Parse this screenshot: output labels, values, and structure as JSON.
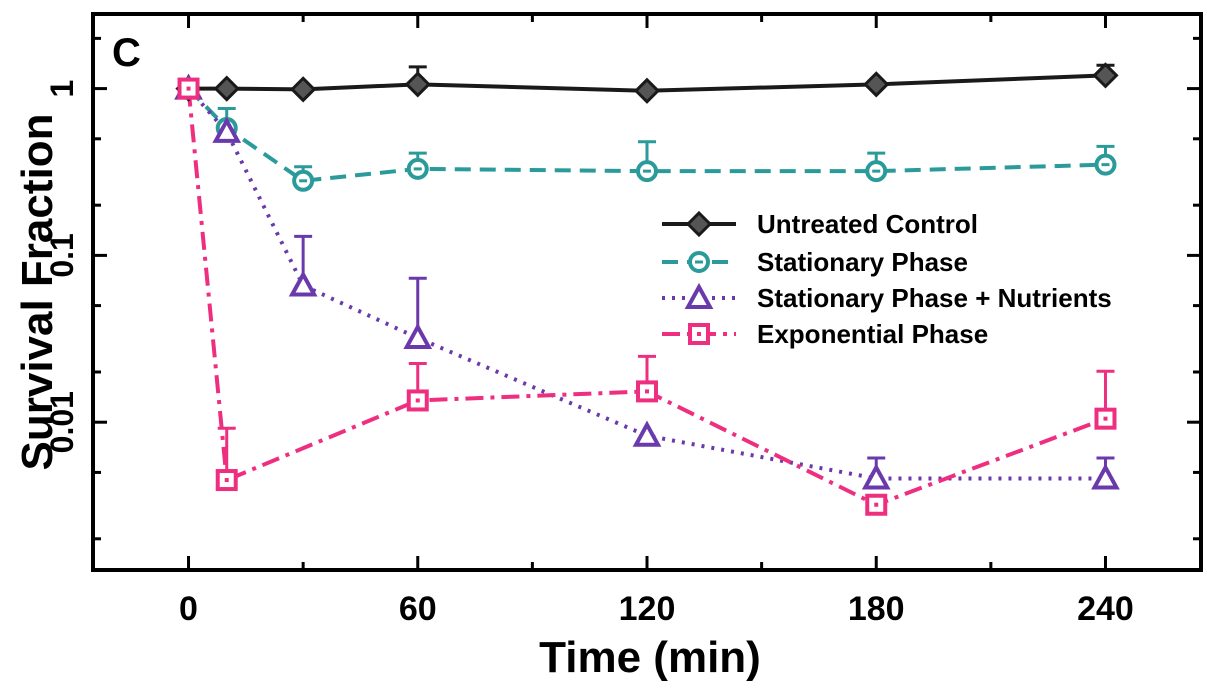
{
  "panel_label": "C",
  "chart_data": {
    "type": "line",
    "xlabel": "Time (min)",
    "ylabel": "Survival Fraction",
    "x_ticks": [
      0,
      60,
      120,
      180,
      240
    ],
    "y_ticks": [
      {
        "value": 1,
        "label": "1"
      },
      {
        "value": 0.1,
        "label": "0.1"
      },
      {
        "value": 0.01,
        "label": "0.01"
      }
    ],
    "xlim": [
      -25,
      265
    ],
    "ylim": [
      0.0013,
      2.8
    ],
    "y_scale": "log",
    "grid": false,
    "legend_position": "center-right",
    "series": [
      {
        "name": "Untreated Control",
        "color": "#1a1a1a",
        "line_style": "solid",
        "marker": "diamond",
        "x": [
          0,
          10,
          30,
          60,
          120,
          180,
          240
        ],
        "y": [
          1.0,
          1.0,
          0.99,
          1.06,
          0.97,
          1.06,
          1.2
        ],
        "err_upper": [
          null,
          null,
          null,
          1.35,
          null,
          null,
          1.38
        ]
      },
      {
        "name": "Stationary Phase",
        "color": "#2a9a9a",
        "line_style": "dashed",
        "marker": "circle",
        "x": [
          0,
          10,
          30,
          60,
          120,
          180,
          240
        ],
        "y": [
          1.0,
          0.58,
          0.28,
          0.33,
          0.32,
          0.32,
          0.35
        ],
        "err_upper": [
          null,
          0.76,
          0.34,
          0.41,
          0.48,
          0.41,
          0.45
        ]
      },
      {
        "name": "Stationary Phase + Nutrients",
        "color": "#6a3aac",
        "line_style": "dotted",
        "marker": "triangle",
        "x": [
          0,
          10,
          30,
          60,
          120,
          180,
          240
        ],
        "y": [
          1.0,
          0.55,
          0.066,
          0.032,
          0.0083,
          0.0046,
          0.0046
        ],
        "err_upper": [
          null,
          null,
          0.13,
          0.073,
          null,
          0.0061,
          0.0061
        ]
      },
      {
        "name": "Exponential Phase",
        "color": "#ee2f7f",
        "line_style": "dashdot",
        "marker": "square",
        "x": [
          0,
          10,
          60,
          120,
          180,
          240
        ],
        "y": [
          1.0,
          0.0045,
          0.0135,
          0.0153,
          0.0032,
          0.0105
        ],
        "err_upper": [
          null,
          0.0092,
          0.0225,
          0.0248,
          null,
          0.0202
        ]
      }
    ]
  }
}
